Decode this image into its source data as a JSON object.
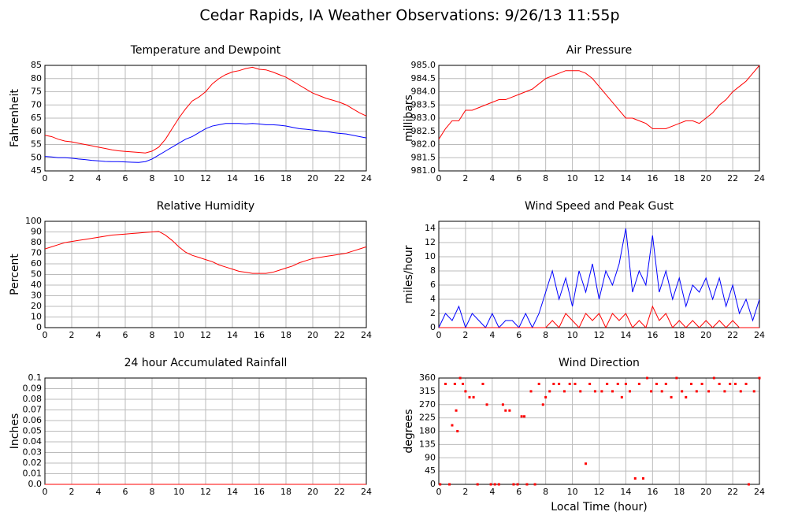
{
  "title": "Cedar Rapids, IA Weather Observations: 9/26/13 11:55p",
  "chart_data": [
    {
      "type": "line",
      "title": "Temperature and Dewpoint",
      "ylabel": "Fahrenheit",
      "grid": true,
      "x": [
        0,
        0.5,
        1,
        1.5,
        2,
        2.5,
        3,
        3.5,
        4,
        4.5,
        5,
        5.5,
        6,
        6.5,
        7,
        7.5,
        8,
        8.5,
        9,
        9.5,
        10,
        10.5,
        11,
        11.5,
        12,
        12.5,
        13,
        13.5,
        14,
        14.5,
        15,
        15.5,
        16,
        16.5,
        17,
        17.5,
        18,
        18.5,
        19,
        19.5,
        20,
        20.5,
        21,
        21.5,
        22,
        22.5,
        23,
        23.5,
        24
      ],
      "xlim": [
        0,
        24
      ],
      "xticks": [
        0,
        2,
        4,
        6,
        8,
        10,
        12,
        14,
        16,
        18,
        20,
        22,
        24
      ],
      "ylim": [
        45,
        85
      ],
      "yticks": [
        45,
        50,
        55,
        60,
        65,
        70,
        75,
        80,
        85
      ],
      "series": [
        {
          "color": "#ff0000",
          "values": [
            58.5,
            58,
            57,
            56.3,
            56,
            55.5,
            55,
            54.5,
            54,
            53.5,
            53,
            52.6,
            52.4,
            52.2,
            52,
            51.8,
            52.5,
            54,
            57,
            61,
            65,
            68.5,
            71.5,
            73,
            75,
            78,
            80,
            81.5,
            82.5,
            83,
            83.8,
            84.3,
            83.5,
            83.3,
            82.5,
            81.5,
            80.5,
            79,
            77.5,
            76,
            74.5,
            73.5,
            72.5,
            71.8,
            71,
            70,
            68.5,
            67,
            65.8
          ]
        },
        {
          "color": "#0000ff",
          "values": [
            50.5,
            50.3,
            50,
            50,
            49.8,
            49.5,
            49.3,
            49,
            48.8,
            48.6,
            48.5,
            48.5,
            48.4,
            48.3,
            48.2,
            48.5,
            49.5,
            51,
            52.5,
            54,
            55.5,
            57,
            58,
            59.5,
            61,
            62,
            62.5,
            63,
            63,
            63,
            62.8,
            63,
            62.8,
            62.5,
            62.5,
            62.3,
            62,
            61.5,
            61,
            60.8,
            60.5,
            60.2,
            60,
            59.5,
            59.2,
            59,
            58.5,
            58,
            57.5
          ]
        }
      ]
    },
    {
      "type": "line",
      "title": "Air Pressure",
      "ylabel": "millibars",
      "grid": true,
      "x": [
        0,
        0.5,
        1,
        1.5,
        2,
        2.5,
        3,
        3.5,
        4,
        4.5,
        5,
        5.5,
        6,
        6.5,
        7,
        7.5,
        8,
        8.5,
        9,
        9.5,
        10,
        10.5,
        11,
        11.5,
        12,
        12.5,
        13,
        13.5,
        14,
        14.5,
        15,
        15.5,
        16,
        16.5,
        17,
        17.5,
        18,
        18.5,
        19,
        19.5,
        20,
        20.5,
        21,
        21.5,
        22,
        22.5,
        23,
        23.5,
        24
      ],
      "xlim": [
        0,
        24
      ],
      "xticks": [
        0,
        2,
        4,
        6,
        8,
        10,
        12,
        14,
        16,
        18,
        20,
        22,
        24
      ],
      "ylim": [
        981,
        985
      ],
      "yticks": [
        {
          "value": 981,
          "label": "981.0"
        },
        981.5,
        {
          "value": 982,
          "label": "982.0"
        },
        982.5,
        {
          "value": 983,
          "label": "983.0"
        },
        983.5,
        {
          "value": 984,
          "label": "984.0"
        },
        984.5,
        {
          "value": 985,
          "label": "985.0"
        }
      ],
      "series": [
        {
          "color": "#ff0000",
          "values": [
            982.2,
            982.6,
            982.9,
            982.9,
            983.3,
            983.3,
            983.4,
            983.5,
            983.6,
            983.7,
            983.7,
            983.8,
            983.9,
            984.0,
            984.1,
            984.3,
            984.5,
            984.6,
            984.7,
            984.8,
            984.8,
            984.8,
            984.7,
            984.5,
            984.2,
            983.9,
            983.6,
            983.3,
            983.0,
            983.0,
            982.9,
            982.8,
            982.6,
            982.6,
            982.6,
            982.7,
            982.8,
            982.9,
            982.9,
            982.8,
            983.0,
            983.2,
            983.5,
            983.7,
            984.0,
            984.2,
            984.4,
            984.7,
            985.0
          ]
        }
      ]
    },
    {
      "type": "line",
      "title": "Relative Humidity",
      "ylabel": "Percent",
      "grid": true,
      "x": [
        0,
        0.5,
        1,
        1.5,
        2,
        2.5,
        3,
        3.5,
        4,
        4.5,
        5,
        5.5,
        6,
        6.5,
        7,
        7.5,
        8,
        8.5,
        9,
        9.5,
        10,
        10.5,
        11,
        11.5,
        12,
        12.5,
        13,
        13.5,
        14,
        14.5,
        15,
        15.5,
        16,
        16.5,
        17,
        17.5,
        18,
        18.5,
        19,
        19.5,
        20,
        20.5,
        21,
        21.5,
        22,
        22.5,
        23,
        23.5,
        24
      ],
      "xlim": [
        0,
        24
      ],
      "xticks": [
        0,
        2,
        4,
        6,
        8,
        10,
        12,
        14,
        16,
        18,
        20,
        22,
        24
      ],
      "ylim": [
        0,
        100
      ],
      "yticks": [
        0,
        10,
        20,
        30,
        40,
        50,
        60,
        70,
        80,
        90,
        100
      ],
      "series": [
        {
          "color": "#ff0000",
          "values": [
            74,
            76,
            78,
            80,
            81,
            82,
            83,
            84,
            85,
            86,
            87,
            87.5,
            88,
            88.5,
            89,
            89.5,
            90,
            90.5,
            87,
            82,
            76,
            71,
            68,
            66,
            64,
            62,
            59,
            57,
            55,
            53,
            52,
            51,
            51,
            51,
            52,
            54,
            56,
            58,
            61,
            63,
            65,
            66,
            67,
            68,
            69,
            70,
            72,
            74,
            76
          ]
        }
      ]
    },
    {
      "type": "line",
      "title": "Wind Speed and Peak Gust",
      "ylabel": "miles/hour",
      "grid": true,
      "x": [
        0,
        0.5,
        1,
        1.5,
        2,
        2.5,
        3,
        3.5,
        4,
        4.5,
        5,
        5.5,
        6,
        6.5,
        7,
        7.5,
        8,
        8.5,
        9,
        9.5,
        10,
        10.5,
        11,
        11.5,
        12,
        12.5,
        13,
        13.5,
        14,
        14.5,
        15,
        15.5,
        16,
        16.5,
        17,
        17.5,
        18,
        18.5,
        19,
        19.5,
        20,
        20.5,
        21,
        21.5,
        22,
        22.5,
        23,
        23.5,
        24
      ],
      "xlim": [
        0,
        24
      ],
      "xticks": [
        0,
        2,
        4,
        6,
        8,
        10,
        12,
        14,
        16,
        18,
        20,
        22,
        24
      ],
      "ylim": [
        0,
        15
      ],
      "yticks": [
        0,
        2,
        4,
        6,
        8,
        10,
        12,
        14
      ],
      "series": [
        {
          "color": "#0000ff",
          "values": [
            0,
            2,
            1,
            3,
            0,
            2,
            1,
            0,
            2,
            0,
            1,
            1,
            0,
            2,
            0,
            2,
            5,
            8,
            4,
            7,
            3,
            8,
            5,
            9,
            4,
            8,
            6,
            9,
            14,
            5,
            8,
            6,
            13,
            5,
            8,
            4,
            7,
            3,
            6,
            5,
            7,
            4,
            7,
            3,
            6,
            2,
            4,
            1,
            4
          ]
        },
        {
          "color": "#ff0000",
          "values": [
            0,
            0,
            0,
            0,
            0,
            0,
            0,
            0,
            0,
            0,
            0,
            0,
            0,
            0,
            0,
            0,
            0,
            1,
            0,
            2,
            1,
            0,
            2,
            1,
            2,
            0,
            2,
            1,
            2,
            0,
            1,
            0,
            3,
            1,
            2,
            0,
            1,
            0,
            1,
            0,
            1,
            0,
            1,
            0,
            1,
            0,
            0,
            0,
            0
          ]
        }
      ]
    },
    {
      "type": "line",
      "title": "24 hour Accumulated Rainfall",
      "ylabel": "Inches",
      "grid": true,
      "x": [
        0,
        24
      ],
      "xlim": [
        0,
        24
      ],
      "xticks": [
        0,
        2,
        4,
        6,
        8,
        10,
        12,
        14,
        16,
        18,
        20,
        22,
        24
      ],
      "ylim": [
        0,
        0.1
      ],
      "yticks": [
        {
          "value": 0,
          "label": "0.0"
        },
        0.01,
        0.02,
        0.03,
        0.04,
        0.05,
        0.06,
        0.07,
        0.08,
        0.09,
        0.1
      ],
      "series": [
        {
          "color": "#ff0000",
          "values": [
            0,
            0
          ]
        }
      ]
    },
    {
      "type": "scatter",
      "title": "Wind Direction",
      "ylabel": "degrees",
      "xlabel": "Local Time (hour)",
      "grid": true,
      "x": [
        0.1,
        0.5,
        0.8,
        1,
        1.2,
        1.3,
        1.4,
        1.6,
        1.8,
        2,
        2.3,
        2.6,
        2.9,
        3.3,
        3.6,
        3.9,
        4.2,
        4.5,
        4.8,
        5,
        5.3,
        5.6,
        5.9,
        6.2,
        6.4,
        6.6,
        6.9,
        7.2,
        7.5,
        7.8,
        8,
        8.3,
        8.6,
        9,
        9.4,
        9.8,
        10.2,
        10.6,
        11,
        11.3,
        11.7,
        12.2,
        12.6,
        13,
        13.4,
        13.7,
        14,
        14.3,
        14.7,
        15,
        15.3,
        15.6,
        15.9,
        16.3,
        16.7,
        17,
        17.4,
        17.8,
        18.2,
        18.5,
        18.9,
        19.3,
        19.7,
        20.2,
        20.6,
        21,
        21.4,
        21.8,
        22.2,
        22.6,
        23,
        23.2,
        23.6,
        24
      ],
      "xlim": [
        0,
        24
      ],
      "xticks": [
        0,
        2,
        4,
        6,
        8,
        10,
        12,
        14,
        16,
        18,
        20,
        22,
        24
      ],
      "ylim": [
        0,
        360
      ],
      "yticks": [
        0,
        45,
        90,
        135,
        180,
        225,
        270,
        315,
        360
      ],
      "color": "#ff0000",
      "values": [
        0,
        340,
        0,
        200,
        340,
        250,
        180,
        360,
        340,
        315,
        295,
        295,
        0,
        340,
        270,
        0,
        0,
        0,
        270,
        250,
        250,
        0,
        0,
        230,
        230,
        0,
        315,
        0,
        340,
        270,
        295,
        315,
        340,
        340,
        315,
        340,
        340,
        315,
        70,
        340,
        315,
        315,
        340,
        315,
        340,
        295,
        340,
        315,
        20,
        340,
        20,
        360,
        315,
        340,
        315,
        340,
        295,
        360,
        315,
        295,
        340,
        315,
        340,
        315,
        360,
        340,
        315,
        340,
        340,
        315,
        340,
        0,
        315,
        360
      ]
    }
  ]
}
